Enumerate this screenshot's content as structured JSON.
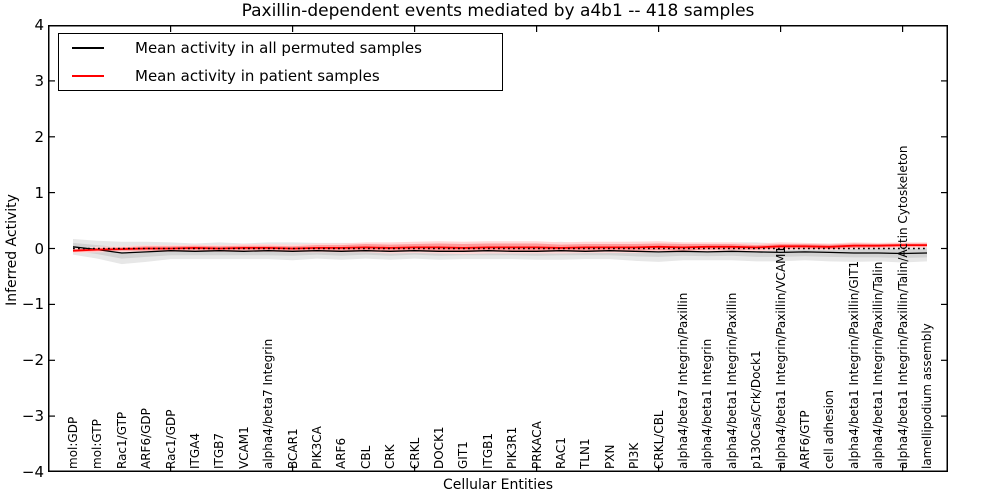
{
  "figure": {
    "title": "Paxillin-dependent events mediated by a4b1 -- 418 samples",
    "xlabel": "Cellular Entities",
    "ylabel": "Inferred Activity"
  },
  "axes": {
    "y_tick_labels": [
      "4",
      "3",
      "2",
      "1",
      "0",
      "−1",
      "−2",
      "−3",
      "−4"
    ],
    "y_tick_values": [
      4,
      3,
      2,
      1,
      0,
      -1,
      -2,
      -3,
      -4
    ],
    "x_major_tick_indices": [
      4,
      9,
      14,
      19,
      24,
      29,
      34
    ]
  },
  "chart_data": {
    "type": "line",
    "title": "Paxillin-dependent events mediated by a4b1 -- 418 samples",
    "xlabel": "Cellular Entities",
    "ylabel": "Inferred Activity",
    "ylim": [
      -4,
      4
    ],
    "yticks": [
      -4,
      -3,
      -2,
      -1,
      0,
      1,
      2,
      3,
      4
    ],
    "grid": false,
    "legend_position": "upper left",
    "categories": [
      "mol:GDP",
      "mol:GTP",
      "Rac1/GTP",
      "ARF6/GDP",
      "Rac1/GDP",
      "ITGA4",
      "ITGB7",
      "VCAM1",
      "alpha4/beta7 Integrin",
      "BCAR1",
      "PIK3CA",
      "ARF6",
      "CBL",
      "CRK",
      "CRKL",
      "DOCK1",
      "GIT1",
      "ITGB1",
      "PIK3R1",
      "PRKACA",
      "RAC1",
      "TLN1",
      "PXN",
      "PI3K",
      "CRKL/CBL",
      "alpha4/beta7 Integrin/Paxillin",
      "alpha4/beta1 Integrin",
      "alpha4/beta1 Integrin/Paxillin",
      "p130Cas/Crk/Dock1",
      "alpha4/beta1 Integrin/Paxillin/VCAM1",
      "ARF6/GTP",
      "cell adhesion",
      "alpha4/beta1 Integrin/Paxillin/GIT1",
      "alpha4/beta1 Integrin/Paxillin/Talin",
      "alpha4/beta1 Integrin/Paxillin/Talin/Actin Cytoskeleton",
      "lamellipodium assembly"
    ],
    "series": [
      {
        "name": "Mean activity in all permuted samples",
        "color": "#000000",
        "style": "solid",
        "values": [
          0.03,
          -0.02,
          -0.08,
          -0.06,
          -0.04,
          -0.05,
          -0.04,
          -0.05,
          -0.04,
          -0.05,
          -0.04,
          -0.05,
          -0.04,
          -0.05,
          -0.04,
          -0.05,
          -0.05,
          -0.04,
          -0.05,
          -0.05,
          -0.04,
          -0.05,
          -0.04,
          -0.05,
          -0.06,
          -0.05,
          -0.06,
          -0.05,
          -0.06,
          -0.07,
          -0.06,
          -0.07,
          -0.08,
          -0.08,
          -0.09,
          -0.08
        ]
      },
      {
        "name": "Mean activity in patient samples",
        "color": "#ff0000",
        "style": "solid",
        "values": [
          -0.04,
          -0.02,
          -0.01,
          0,
          0,
          0.01,
          0,
          0.01,
          0.01,
          0,
          0.01,
          0.01,
          0.02,
          0.01,
          0.02,
          0.02,
          0.01,
          0.02,
          0.02,
          0.02,
          0.01,
          0.02,
          0.02,
          0.02,
          0.03,
          0.02,
          0.03,
          0.03,
          0.02,
          0.04,
          0.04,
          0.03,
          0.05,
          0.05,
          0.06,
          0.06
        ]
      }
    ],
    "bands": [
      {
        "name": "permuted-spread-outer",
        "center": "permuted",
        "color": "#e7e7e7",
        "half_width": [
          0.14,
          0.16,
          0.2,
          0.18,
          0.15,
          0.14,
          0.15,
          0.14,
          0.15,
          0.16,
          0.14,
          0.15,
          0.14,
          0.15,
          0.14,
          0.15,
          0.14,
          0.15,
          0.14,
          0.15,
          0.16,
          0.14,
          0.15,
          0.17,
          0.18,
          0.16,
          0.15,
          0.16,
          0.17,
          0.16,
          0.15,
          0.16,
          0.16,
          0.15,
          0.16,
          0.15
        ]
      },
      {
        "name": "permuted-spread-inner",
        "center": "permuted",
        "color": "#d2d2d2",
        "half_width": [
          0.07,
          0.08,
          0.1,
          0.09,
          0.08,
          0.07,
          0.08,
          0.07,
          0.08,
          0.08,
          0.07,
          0.08,
          0.07,
          0.08,
          0.07,
          0.08,
          0.07,
          0.08,
          0.07,
          0.08,
          0.08,
          0.07,
          0.08,
          0.09,
          0.09,
          0.08,
          0.08,
          0.08,
          0.09,
          0.08,
          0.08,
          0.08,
          0.08,
          0.08,
          0.08,
          0.08
        ]
      },
      {
        "name": "patient-spread-outer",
        "center": "patient",
        "color": "#ffd8d8",
        "half_width": [
          0.04,
          0.05,
          0.05,
          0.06,
          0.06,
          0.06,
          0.06,
          0.07,
          0.07,
          0.07,
          0.08,
          0.08,
          0.09,
          0.1,
          0.1,
          0.11,
          0.11,
          0.11,
          0.11,
          0.11,
          0.1,
          0.1,
          0.1,
          0.1,
          0.1,
          0.09,
          0.08,
          0.08,
          0.07,
          0.07,
          0.06,
          0.06,
          0.06,
          0.05,
          0.05,
          0.05
        ]
      },
      {
        "name": "patient-spread-inner",
        "center": "patient",
        "color": "#ff9c9c",
        "half_width": [
          0.02,
          0.03,
          0.03,
          0.04,
          0.04,
          0.04,
          0.04,
          0.04,
          0.04,
          0.04,
          0.05,
          0.05,
          0.06,
          0.06,
          0.06,
          0.07,
          0.07,
          0.07,
          0.07,
          0.07,
          0.06,
          0.06,
          0.06,
          0.06,
          0.06,
          0.06,
          0.05,
          0.05,
          0.04,
          0.04,
          0.04,
          0.04,
          0.04,
          0.03,
          0.03,
          0.03
        ]
      }
    ],
    "zero_line": {
      "y": 0,
      "style": "dotted",
      "color": "#000000"
    }
  }
}
